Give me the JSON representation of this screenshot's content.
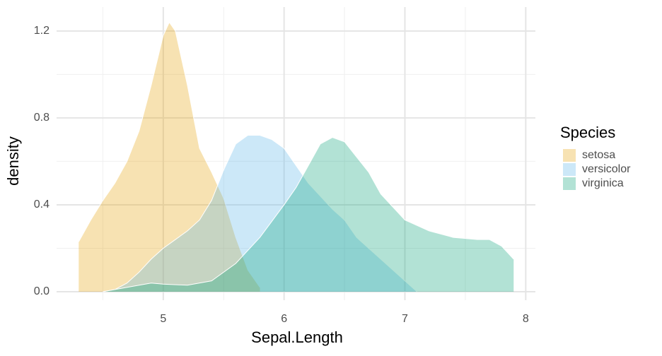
{
  "chart_data": {
    "type": "density",
    "x_label": "Sepal.Length",
    "y_label": "density",
    "legend_title": "Species",
    "legend_position": "right",
    "grid": true,
    "xlim": [
      4.117,
      8.08
    ],
    "xticks": [
      5,
      6,
      7,
      8
    ],
    "ylim": [
      -0.039,
      1.31
    ],
    "yticks": [
      {
        "value": 0,
        "label": "0.0"
      },
      {
        "value": 0.4,
        "label": "0.4"
      },
      {
        "value": 0.8,
        "label": "0.8"
      },
      {
        "value": 1.2,
        "label": "1.2"
      }
    ],
    "opacity": 0.3,
    "series": [
      {
        "name": "setosa",
        "color": "#E69F00",
        "x": [
          4.3,
          4.4,
          4.5,
          4.6,
          4.7,
          4.8,
          4.9,
          5.0,
          5.05,
          5.1,
          5.2,
          5.3,
          5.4,
          5.5,
          5.6,
          5.7,
          5.8
        ],
        "values": [
          0.23,
          0.33,
          0.42,
          0.5,
          0.6,
          0.74,
          0.95,
          1.18,
          1.24,
          1.2,
          0.95,
          0.66,
          0.55,
          0.43,
          0.25,
          0.1,
          0.02
        ]
      },
      {
        "name": "versicolor",
        "color": "#56B4E9",
        "x": [
          4.5,
          4.6,
          4.7,
          4.8,
          4.9,
          5.0,
          5.1,
          5.2,
          5.3,
          5.4,
          5.5,
          5.6,
          5.7,
          5.8,
          5.9,
          6.0,
          6.1,
          6.2,
          6.3,
          6.4,
          6.5,
          6.6,
          6.7,
          6.8,
          6.9,
          7.0,
          7.1
        ],
        "values": [
          0,
          0.01,
          0.04,
          0.09,
          0.15,
          0.2,
          0.24,
          0.28,
          0.33,
          0.42,
          0.56,
          0.68,
          0.72,
          0.72,
          0.7,
          0.66,
          0.58,
          0.5,
          0.44,
          0.38,
          0.33,
          0.25,
          0.2,
          0.15,
          0.1,
          0.05,
          0
        ]
      },
      {
        "name": "virginica",
        "color": "#009E73",
        "x": [
          4.5,
          4.6,
          4.8,
          4.9,
          5.0,
          5.2,
          5.4,
          5.6,
          5.8,
          6.0,
          6.1,
          6.2,
          6.3,
          6.4,
          6.5,
          6.6,
          6.7,
          6.8,
          7.0,
          7.2,
          7.4,
          7.6,
          7.7,
          7.8,
          7.9
        ],
        "values": [
          0,
          0.01,
          0.03,
          0.04,
          0.035,
          0.03,
          0.05,
          0.13,
          0.25,
          0.4,
          0.48,
          0.58,
          0.68,
          0.71,
          0.69,
          0.62,
          0.55,
          0.45,
          0.33,
          0.28,
          0.25,
          0.24,
          0.24,
          0.21,
          0.15
        ]
      }
    ]
  }
}
